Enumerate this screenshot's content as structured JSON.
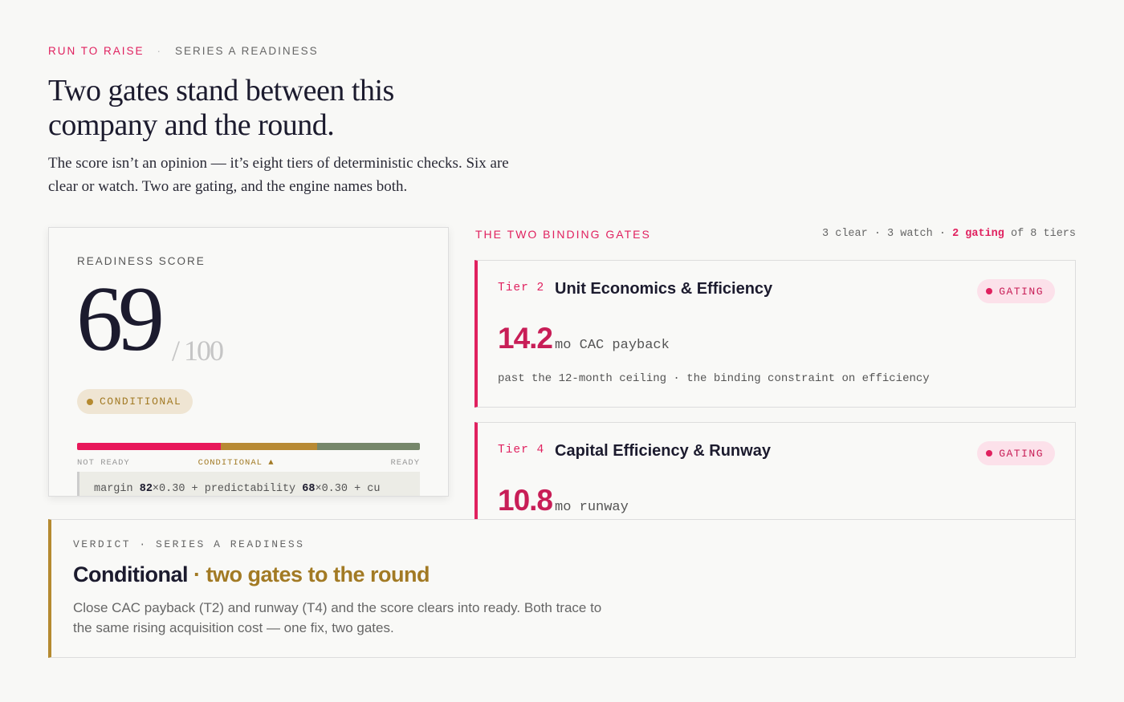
{
  "header": {
    "eyebrow": "RUN TO RAISE",
    "separator": "·",
    "section": "SERIES A READINESS",
    "title": "Two gates stand between this company and the round.",
    "intro": "The score isn’t an opinion — it’s eight tiers of deterministic checks. Six are clear or watch. Two are gating, and the engine names both."
  },
  "score_card": {
    "label": "READINESS SCORE",
    "score": "69",
    "max": "/ 100",
    "status": "CONDITIONAL",
    "scale_labels": [
      "NOT READY",
      "CONDITIONAL ▲",
      "READY"
    ],
    "formula": [
      "margin",
      "82",
      "×0.30 + predictability",
      "68",
      "×0.30 + cu"
    ]
  },
  "gates": {
    "title": "THE TWO BINDING GATES",
    "summary": [
      "3 clear · 3 watch ·",
      "2 gating",
      "of 8 tiers"
    ],
    "items": [
      {
        "tier": "Tier 2",
        "name": "Unit Economics & Efficiency",
        "status": "GATING",
        "value": "14.2",
        "unit": "mo CAC payback",
        "note": "past the 12-month ceiling · the binding constraint on efficiency"
      },
      {
        "tier": "Tier 4",
        "name": "Capital Efficiency & Runway",
        "status": "GATING",
        "value": "10.8",
        "unit": "mo runway"
      }
    ]
  },
  "verdict": {
    "label": "VERDICT · SERIES A READINESS",
    "heading": "Conditional",
    "subheading": "· two gates to the round",
    "body": "Close CAC payback (T2) and runway (T4) and the score clears into ready. Both trace to the same rising acquisition cost — one fix, two gates."
  }
}
